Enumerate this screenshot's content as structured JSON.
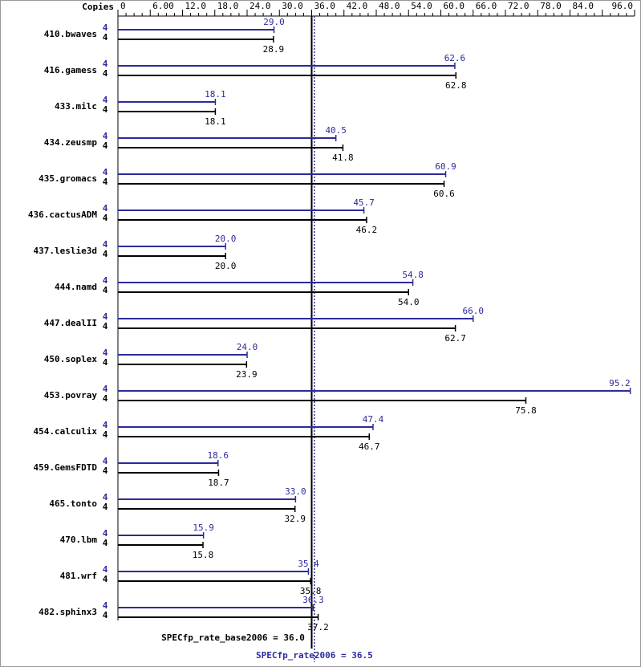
{
  "chart_data": {
    "type": "bar",
    "orientation": "horizontal",
    "x_axis_label": "Copies",
    "xlim": [
      0,
      96
    ],
    "xticks": [
      0,
      {
        "value": 6,
        "label": "6.00"
      },
      {
        "value": 12,
        "label": "12.0"
      },
      {
        "value": 18,
        "label": "18.0"
      },
      {
        "value": 24,
        "label": "24.0"
      },
      {
        "value": 30,
        "label": "30.0"
      },
      {
        "value": 36,
        "label": "36.0"
      },
      {
        "value": 42,
        "label": "42.0"
      },
      {
        "value": 48,
        "label": "48.0"
      },
      {
        "value": 54,
        "label": "54.0"
      },
      {
        "value": 60,
        "label": "60.0"
      },
      {
        "value": 66,
        "label": "66.0"
      },
      {
        "value": 72,
        "label": "72.0"
      },
      {
        "value": 78,
        "label": "78.0"
      },
      {
        "value": 84,
        "label": "84.0"
      },
      {
        "value": 90,
        "label": null
      },
      {
        "value": 96,
        "label": "96.0"
      }
    ],
    "categories": [
      "410.bwaves",
      "416.gamess",
      "433.milc",
      "434.zeusmp",
      "435.gromacs",
      "436.cactusADM",
      "437.leslie3d",
      "444.namd",
      "447.dealII",
      "450.soplex",
      "453.povray",
      "454.calculix",
      "459.GemsFDTD",
      "465.tonto",
      "470.lbm",
      "481.wrf",
      "482.sphinx3"
    ],
    "series": [
      {
        "color": "#2b2b9b",
        "copies": [
          4,
          4,
          4,
          4,
          4,
          4,
          4,
          4,
          4,
          4,
          4,
          4,
          4,
          4,
          4,
          4,
          4
        ],
        "values": [
          29.0,
          62.6,
          18.1,
          40.5,
          60.9,
          45.7,
          20.0,
          54.8,
          66.0,
          24.0,
          95.2,
          47.4,
          18.6,
          33.0,
          15.9,
          35.4,
          36.3
        ],
        "value_labels": [
          "29.0",
          "62.6",
          "18.1",
          "40.5",
          "60.9",
          "45.7",
          "20.0",
          "54.8",
          "66.0",
          "24.0",
          "95.2",
          "47.4",
          "18.6",
          "33.0",
          "15.9",
          "35.4",
          "36.3"
        ]
      },
      {
        "color": "#000000",
        "copies": [
          4,
          4,
          4,
          4,
          4,
          4,
          4,
          4,
          4,
          4,
          4,
          4,
          4,
          4,
          4,
          4,
          4
        ],
        "values": [
          28.9,
          62.8,
          18.1,
          41.8,
          60.6,
          46.2,
          20.0,
          54.0,
          62.7,
          23.9,
          75.8,
          46.7,
          18.7,
          32.9,
          15.8,
          35.8,
          37.2
        ],
        "value_labels": [
          "28.9",
          "62.8",
          "18.1",
          "41.8",
          "60.6",
          "46.2",
          "20.0",
          "54.0",
          "62.7",
          "23.9",
          "75.8",
          "46.7",
          "18.7",
          "32.9",
          "15.8",
          "35.8",
          "37.2"
        ]
      }
    ],
    "reference_lines": [
      {
        "label": "SPECfp_rate_base2006 = 36.0",
        "value": 36.0,
        "color": "#000000",
        "style": "solid"
      },
      {
        "label": "SPECfp_rate2006 = 36.5",
        "value": 36.5,
        "color": "#2b2b9b",
        "style": "dotted"
      }
    ]
  }
}
